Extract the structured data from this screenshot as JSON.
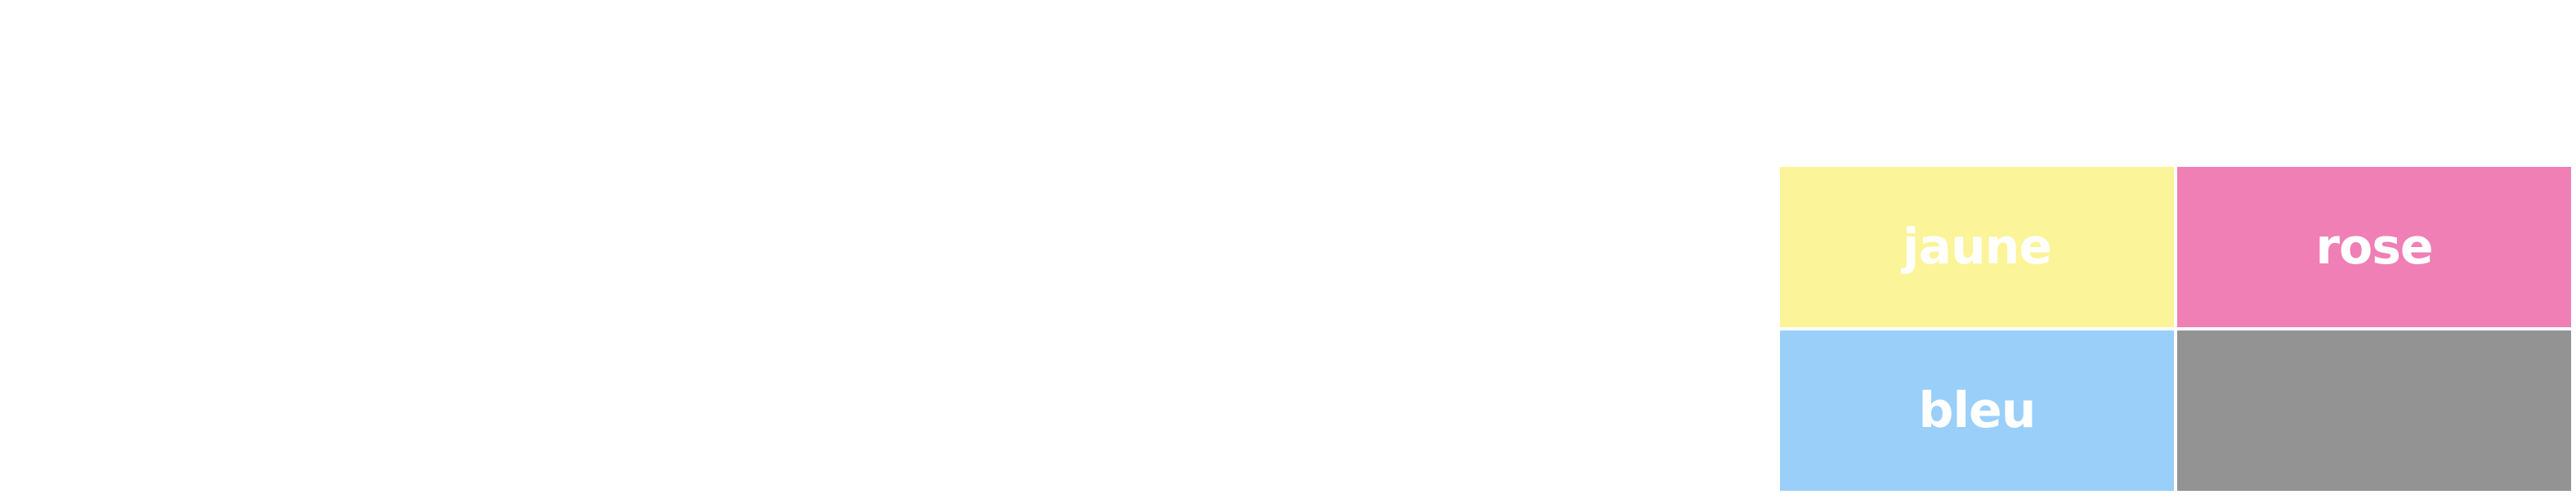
{
  "tiles": [
    {
      "label": "jaune",
      "color": "#fbf498"
    },
    {
      "label": "rose",
      "color": "#ef7fb5"
    },
    {
      "label": "bleu",
      "color": "#9acffa"
    },
    {
      "label": "",
      "color": "#939393"
    }
  ]
}
